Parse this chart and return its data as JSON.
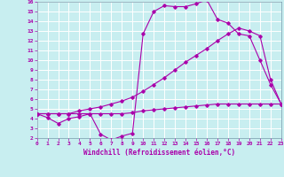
{
  "xlabel": "Windchill (Refroidissement éolien,°C)",
  "bg_color": "#c8eef0",
  "grid_color": "#ffffff",
  "line_color": "#aa00aa",
  "x_min": 0,
  "x_max": 23,
  "y_min": 2,
  "y_max": 16,
  "curve1_x": [
    0,
    1,
    2,
    3,
    4,
    5,
    6,
    7,
    8,
    9,
    10,
    11,
    12,
    13,
    14,
    15,
    16,
    17,
    18,
    19,
    20,
    21,
    22,
    23
  ],
  "curve1_y": [
    4.5,
    4.1,
    3.5,
    4.0,
    4.2,
    4.5,
    2.4,
    1.8,
    2.2,
    2.5,
    12.7,
    15.0,
    15.6,
    15.5,
    15.5,
    15.8,
    16.2,
    14.2,
    13.8,
    12.7,
    12.5,
    10.0,
    7.5,
    5.5
  ],
  "curve2_x": [
    0,
    1,
    2,
    3,
    4,
    5,
    6,
    7,
    8,
    9,
    10,
    11,
    12,
    13,
    14,
    15,
    16,
    17,
    18,
    19,
    20,
    21,
    22,
    23
  ],
  "curve2_y": [
    4.5,
    4.5,
    4.5,
    4.5,
    4.5,
    4.5,
    4.5,
    4.5,
    4.5,
    4.6,
    4.8,
    4.9,
    5.0,
    5.1,
    5.2,
    5.3,
    5.4,
    5.5,
    5.5,
    5.5,
    5.5,
    5.5,
    5.5,
    5.5
  ],
  "curve3_x": [
    0,
    1,
    2,
    3,
    4,
    5,
    6,
    7,
    8,
    9,
    10,
    11,
    12,
    13,
    14,
    15,
    16,
    17,
    18,
    19,
    20,
    21,
    22,
    23
  ],
  "curve3_y": [
    4.5,
    4.5,
    4.5,
    4.5,
    4.8,
    5.0,
    5.2,
    5.5,
    5.8,
    6.2,
    6.8,
    7.5,
    8.2,
    9.0,
    9.8,
    10.5,
    11.2,
    12.0,
    12.7,
    13.3,
    13.0,
    12.5,
    8.0,
    5.5
  ]
}
